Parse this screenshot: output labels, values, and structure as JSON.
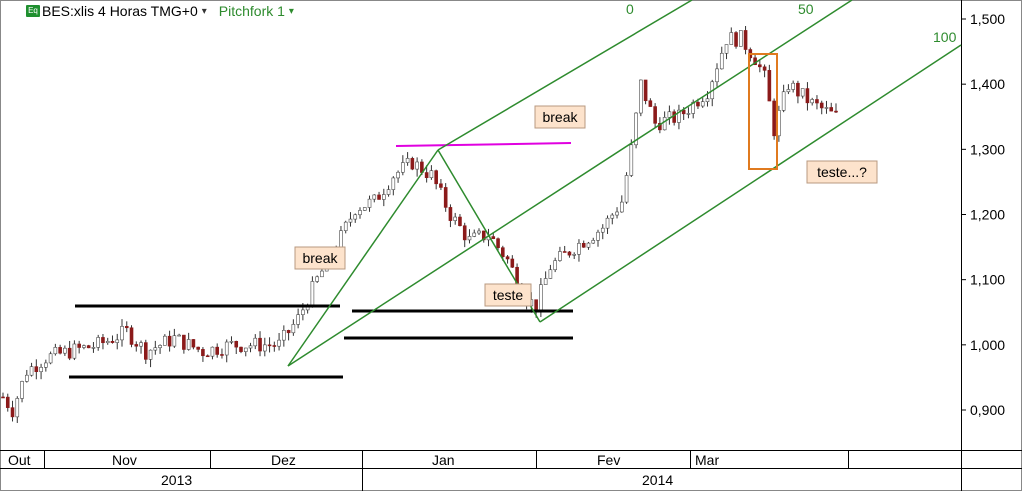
{
  "header": {
    "eq_icon_label": "Eq",
    "symbol_label": "BES:xlis 4 Horas TMG+0",
    "study_label": "Pitchfork 1",
    "study_color": "#2e8b2e"
  },
  "chart_data": {
    "type": "candlestick",
    "title": "BES:xlis 4 Horas TMG+0",
    "price_axis": {
      "ticks": [
        "1,500",
        "1,400",
        "1,300",
        "1,200",
        "1,100",
        "1,000",
        "0,900"
      ],
      "tick_values": [
        1.5,
        1.4,
        1.3,
        1.2,
        1.1,
        1.0,
        0.9
      ],
      "range": [
        0.84,
        1.53
      ]
    },
    "time_axis": {
      "months": [
        "Out",
        "Nov",
        "Dez",
        "Jan",
        "Fev",
        "Mar"
      ],
      "years": [
        "2013",
        "2014"
      ]
    },
    "price_path": [
      [
        0,
        0.92
      ],
      [
        2,
        0.9
      ],
      [
        5,
        0.96
      ],
      [
        9,
        0.98
      ],
      [
        14,
        0.99
      ],
      [
        20,
        1.0
      ],
      [
        26,
        1.02
      ],
      [
        30,
        0.99
      ],
      [
        36,
        1.01
      ],
      [
        42,
        0.99
      ],
      [
        48,
        1.0
      ],
      [
        54,
        1.0
      ],
      [
        58,
        1.0
      ],
      [
        62,
        1.04
      ],
      [
        66,
        1.1
      ],
      [
        70,
        1.15
      ],
      [
        74,
        1.21
      ],
      [
        78,
        1.22
      ],
      [
        82,
        1.26
      ],
      [
        86,
        1.28
      ],
      [
        90,
        1.26
      ],
      [
        94,
        1.2
      ],
      [
        98,
        1.16
      ],
      [
        102,
        1.17
      ],
      [
        106,
        1.13
      ],
      [
        110,
        1.07
      ],
      [
        112,
        1.06
      ],
      [
        115,
        1.12
      ],
      [
        120,
        1.15
      ],
      [
        126,
        1.18
      ],
      [
        130,
        1.22
      ],
      [
        132,
        1.3
      ],
      [
        134,
        1.4
      ],
      [
        137,
        1.34
      ],
      [
        142,
        1.35
      ],
      [
        148,
        1.39
      ],
      [
        152,
        1.47
      ],
      [
        155,
        1.47
      ],
      [
        158,
        1.44
      ],
      [
        160,
        1.41
      ],
      [
        162,
        1.33
      ],
      [
        165,
        1.4
      ],
      [
        170,
        1.37
      ],
      [
        175,
        1.35
      ]
    ],
    "pitchfork": {
      "labels": [
        "0",
        "50",
        "100"
      ],
      "color": "#2e8b2e"
    },
    "support_resistance_color": "#000000",
    "resistance_line_color": "#e000e0",
    "highlight_box_color": "#e07a1f",
    "annotations": [
      {
        "text": "break",
        "fill": "#fde3cc"
      },
      {
        "text": "break",
        "fill": "#fde3cc"
      },
      {
        "text": "teste",
        "fill": "#fde3cc"
      },
      {
        "text": "teste...?",
        "fill": "#fde3cc"
      }
    ],
    "candle_colors": {
      "up": "#4a4a4a",
      "down": "#8b1a1a"
    }
  }
}
